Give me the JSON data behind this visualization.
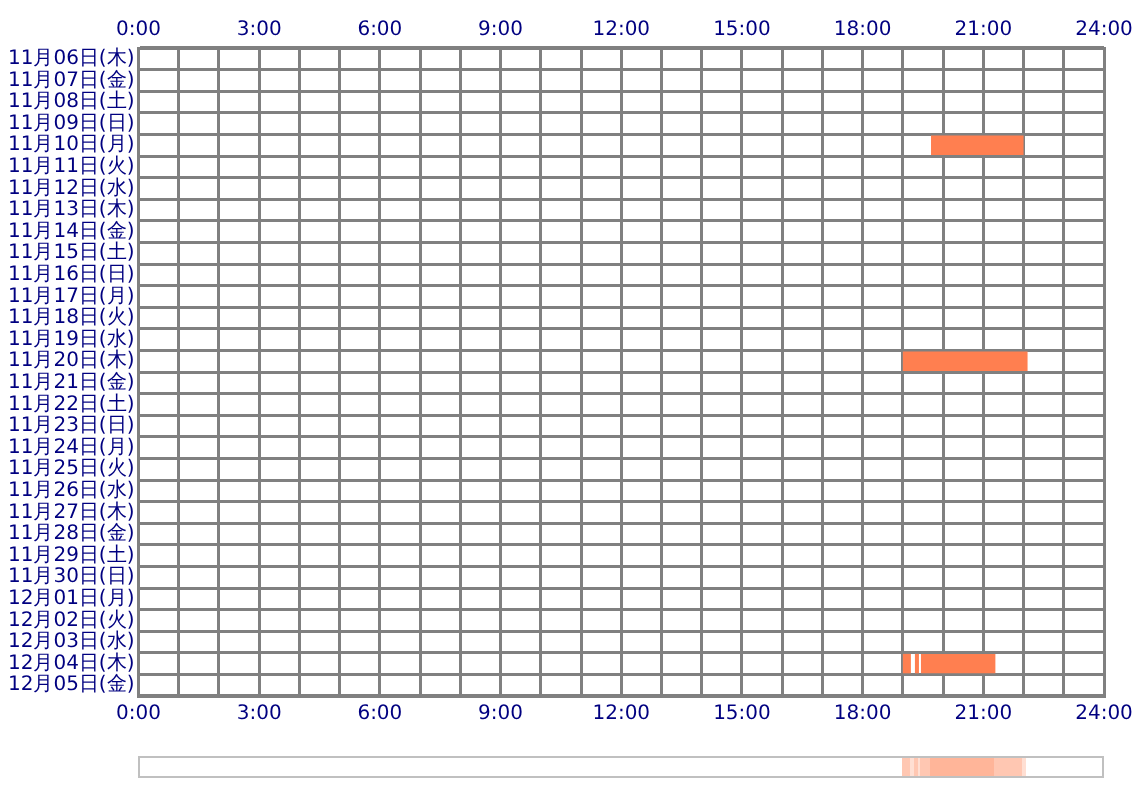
{
  "chart_data": {
    "type": "bar",
    "orientation": "horizontal",
    "grid": true,
    "categories": [
      "11月06日(木)",
      "11月07日(金)",
      "11月08日(土)",
      "11月09日(日)",
      "11月10日(月)",
      "11月11日(火)",
      "11月12日(水)",
      "11月13日(木)",
      "11月14日(金)",
      "11月15日(土)",
      "11月16日(日)",
      "11月17日(月)",
      "11月18日(火)",
      "11月19日(水)",
      "11月20日(木)",
      "11月21日(金)",
      "11月22日(土)",
      "11月23日(日)",
      "11月24日(月)",
      "11月25日(火)",
      "11月26日(水)",
      "11月27日(木)",
      "11月28日(金)",
      "11月29日(土)",
      "11月30日(日)",
      "12月01日(月)",
      "12月02日(火)",
      "12月03日(水)",
      "12月04日(木)",
      "12月05日(金)"
    ],
    "series": [
      {
        "color": "#ff7f50",
        "base": [
          null,
          null,
          null,
          null,
          19.7,
          null,
          null,
          null,
          null,
          null,
          null,
          null,
          null,
          null,
          19.0,
          null,
          null,
          null,
          null,
          null,
          null,
          null,
          null,
          null,
          null,
          null,
          null,
          null,
          19.45,
          null
        ],
        "values": [
          null,
          null,
          null,
          null,
          2.3,
          null,
          null,
          null,
          null,
          null,
          null,
          null,
          null,
          null,
          3.1,
          null,
          null,
          null,
          null,
          null,
          null,
          null,
          null,
          null,
          null,
          null,
          null,
          null,
          1.85,
          null
        ]
      },
      {
        "color": "#ff7f50",
        "base": [
          null,
          null,
          null,
          null,
          null,
          null,
          null,
          null,
          null,
          null,
          null,
          null,
          null,
          null,
          null,
          null,
          null,
          null,
          null,
          null,
          null,
          null,
          null,
          null,
          null,
          null,
          null,
          null,
          19.0,
          null
        ],
        "values": [
          null,
          null,
          null,
          null,
          null,
          null,
          null,
          null,
          null,
          null,
          null,
          null,
          null,
          null,
          null,
          null,
          null,
          null,
          null,
          null,
          null,
          null,
          null,
          null,
          null,
          null,
          null,
          null,
          0.2,
          null
        ]
      },
      {
        "color": "#ff7f50",
        "base": [
          null,
          null,
          null,
          null,
          null,
          null,
          null,
          null,
          null,
          null,
          null,
          null,
          null,
          null,
          null,
          null,
          null,
          null,
          null,
          null,
          null,
          null,
          null,
          null,
          null,
          null,
          null,
          null,
          19.3,
          null
        ],
        "values": [
          null,
          null,
          null,
          null,
          null,
          null,
          null,
          null,
          null,
          null,
          null,
          null,
          null,
          null,
          null,
          null,
          null,
          null,
          null,
          null,
          null,
          null,
          null,
          null,
          null,
          null,
          null,
          null,
          0.1,
          null
        ]
      }
    ],
    "xlim": [
      0,
      24
    ],
    "xticks": [
      {
        "value": 0,
        "label": "0:00"
      },
      {
        "value": 1,
        "label": null
      },
      {
        "value": 2,
        "label": null
      },
      {
        "value": 3,
        "label": "3:00"
      },
      {
        "value": 4,
        "label": null
      },
      {
        "value": 5,
        "label": null
      },
      {
        "value": 6,
        "label": "6:00"
      },
      {
        "value": 7,
        "label": null
      },
      {
        "value": 8,
        "label": null
      },
      {
        "value": 9,
        "label": "9:00"
      },
      {
        "value": 10,
        "label": null
      },
      {
        "value": 11,
        "label": null
      },
      {
        "value": 12,
        "label": "12:00"
      },
      {
        "value": 13,
        "label": null
      },
      {
        "value": 14,
        "label": null
      },
      {
        "value": 15,
        "label": "15:00"
      },
      {
        "value": 16,
        "label": null
      },
      {
        "value": 17,
        "label": null
      },
      {
        "value": 18,
        "label": "18:00"
      },
      {
        "value": 19,
        "label": null
      },
      {
        "value": 20,
        "label": null
      },
      {
        "value": 21,
        "label": "21:00"
      },
      {
        "value": 22,
        "label": null
      },
      {
        "value": 23,
        "label": null
      },
      {
        "value": 24,
        "label": "24:00"
      }
    ],
    "x2lim": [
      0,
      24
    ],
    "x2ticks": [
      {
        "value": 0,
        "label": "0:00"
      },
      {
        "value": 1,
        "label": null
      },
      {
        "value": 2,
        "label": null
      },
      {
        "value": 3,
        "label": "3:00"
      },
      {
        "value": 4,
        "label": null
      },
      {
        "value": 5,
        "label": null
      },
      {
        "value": 6,
        "label": "6:00"
      },
      {
        "value": 7,
        "label": null
      },
      {
        "value": 8,
        "label": null
      },
      {
        "value": 9,
        "label": "9:00"
      },
      {
        "value": 10,
        "label": null
      },
      {
        "value": 11,
        "label": null
      },
      {
        "value": 12,
        "label": "12:00"
      },
      {
        "value": 13,
        "label": null
      },
      {
        "value": 14,
        "label": null
      },
      {
        "value": 15,
        "label": "15:00"
      },
      {
        "value": 16,
        "label": null
      },
      {
        "value": 17,
        "label": null
      },
      {
        "value": 18,
        "label": "18:00"
      },
      {
        "value": 19,
        "label": null
      },
      {
        "value": 20,
        "label": null
      },
      {
        "value": 21,
        "label": "21:00"
      },
      {
        "value": 22,
        "label": null
      },
      {
        "value": 23,
        "label": null
      },
      {
        "value": 24,
        "label": "24:00"
      }
    ]
  }
}
